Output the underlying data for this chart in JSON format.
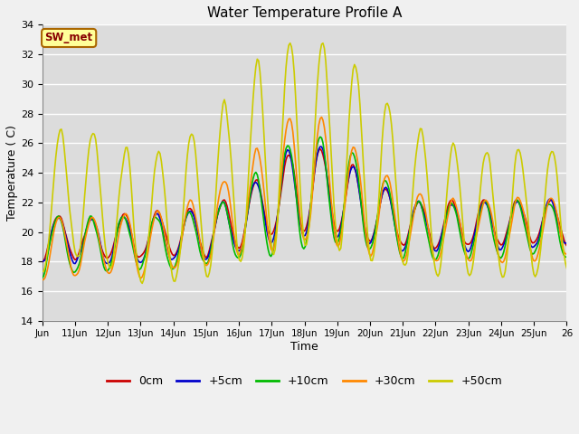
{
  "title": "Water Temperature Profile A",
  "xlabel": "Time",
  "ylabel": "Temperature (C)",
  "ylim": [
    14,
    34
  ],
  "yticks": [
    14,
    16,
    18,
    20,
    22,
    24,
    26,
    28,
    30,
    32,
    34
  ],
  "xtick_labels": [
    "Jun",
    "11Jun",
    "12Jun",
    "13Jun",
    "14Jun",
    "15Jun",
    "16Jun",
    "17Jun",
    "18Jun",
    "19Jun",
    "20Jun",
    "21Jun",
    "22Jun",
    "23Jun",
    "24Jun",
    "25Jun",
    "26"
  ],
  "legend_entries": [
    "0cm",
    "+5cm",
    "+10cm",
    "+30cm",
    "+50cm"
  ],
  "legend_colors": [
    "#cc0000",
    "#0000cc",
    "#00bb00",
    "#ff8800",
    "#cccc00"
  ],
  "annotation_text": "SW_met",
  "annotation_bg": "#ffff99",
  "annotation_border": "#aa6600",
  "annotation_text_color": "#880000",
  "plot_bg": "#dcdcdc",
  "fig_bg": "#f0f0f0",
  "grid_color": "#ffffff",
  "line_colors": [
    "#cc0000",
    "#0000cc",
    "#00bb00",
    "#ff8800",
    "#cccc00"
  ],
  "line_width": 1.2
}
